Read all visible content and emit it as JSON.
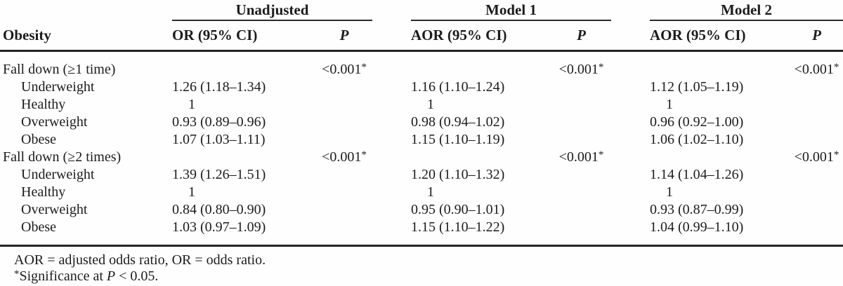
{
  "table": {
    "stub_header": "Obesity",
    "groups": [
      {
        "label": "Unadjusted",
        "value_header": "OR (95% CI)",
        "p_header": "P"
      },
      {
        "label": "Model 1",
        "value_header": "AOR (95% CI)",
        "p_header": "P"
      },
      {
        "label": "Model 2",
        "value_header": "AOR (95% CI)",
        "p_header": "P"
      }
    ],
    "rows": [
      {
        "label": "Fall down (≥1 time)",
        "indent": false,
        "cells": [
          {
            "value": "",
            "p": "<0.001",
            "p_sig": true
          },
          {
            "value": "",
            "p": "<0.001",
            "p_sig": true
          },
          {
            "value": "",
            "p": "<0.001",
            "p_sig": true
          }
        ]
      },
      {
        "label": "Underweight",
        "indent": true,
        "cells": [
          {
            "value": "1.26 (1.18–1.34)",
            "p": ""
          },
          {
            "value": "1.16 (1.10–1.24)",
            "p": ""
          },
          {
            "value": "1.12 (1.05–1.19)",
            "p": ""
          }
        ]
      },
      {
        "label": "Healthy",
        "indent": true,
        "cells": [
          {
            "value": "1",
            "p": ""
          },
          {
            "value": "1",
            "p": ""
          },
          {
            "value": "1",
            "p": ""
          }
        ]
      },
      {
        "label": "Overweight",
        "indent": true,
        "cells": [
          {
            "value": "0.93 (0.89–0.96)",
            "p": ""
          },
          {
            "value": "0.98 (0.94–1.02)",
            "p": ""
          },
          {
            "value": "0.96 (0.92–1.00)",
            "p": ""
          }
        ]
      },
      {
        "label": "Obese",
        "indent": true,
        "cells": [
          {
            "value": "1.07 (1.03–1.11)",
            "p": ""
          },
          {
            "value": "1.15 (1.10–1.19)",
            "p": ""
          },
          {
            "value": "1.06 (1.02–1.10)",
            "p": ""
          }
        ]
      },
      {
        "label": "Fall down (≥2 times)",
        "indent": false,
        "cells": [
          {
            "value": "",
            "p": "<0.001",
            "p_sig": true
          },
          {
            "value": "",
            "p": "<0.001",
            "p_sig": true
          },
          {
            "value": "",
            "p": "<0.001",
            "p_sig": true
          }
        ]
      },
      {
        "label": "Underweight",
        "indent": true,
        "cells": [
          {
            "value": "1.39 (1.26–1.51)",
            "p": ""
          },
          {
            "value": "1.20 (1.10–1.32)",
            "p": ""
          },
          {
            "value": "1.14 (1.04–1.26)",
            "p": ""
          }
        ]
      },
      {
        "label": "Healthy",
        "indent": true,
        "cells": [
          {
            "value": "1",
            "p": ""
          },
          {
            "value": "1",
            "p": ""
          },
          {
            "value": "1",
            "p": ""
          }
        ]
      },
      {
        "label": "Overweight",
        "indent": true,
        "cells": [
          {
            "value": "0.84 (0.80–0.90)",
            "p": ""
          },
          {
            "value": "0.95 (0.90–1.01)",
            "p": ""
          },
          {
            "value": "0.93 (0.87–0.99)",
            "p": ""
          }
        ]
      },
      {
        "label": "Obese",
        "indent": true,
        "cells": [
          {
            "value": "1.03 (0.97–1.09)",
            "p": ""
          },
          {
            "value": "1.15 (1.10–1.22)",
            "p": ""
          },
          {
            "value": "1.04 (0.99–1.10)",
            "p": ""
          }
        ]
      }
    ]
  },
  "footnotes": {
    "abbreviations": "AOR = adjusted odds ratio, OR = odds ratio.",
    "significance": {
      "marker": "*",
      "before_p": "Significance at ",
      "p_symbol": "P",
      "after_p": " < 0.05."
    }
  },
  "colors": {
    "text": "#1c1c1c",
    "rule": "#242424",
    "background": "#fefefe"
  }
}
